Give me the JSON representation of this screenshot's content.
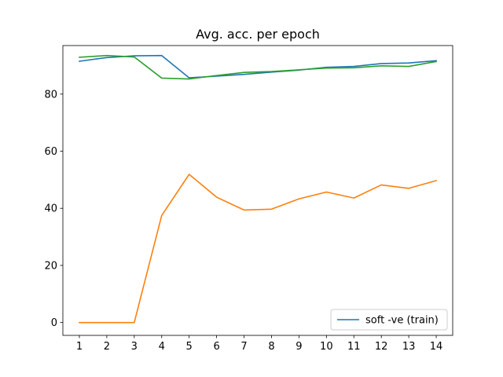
{
  "chart_data": {
    "type": "line",
    "title": "Avg. acc. per epoch",
    "xlabel": "",
    "ylabel": "",
    "x": [
      1,
      2,
      3,
      4,
      5,
      6,
      7,
      8,
      9,
      10,
      11,
      12,
      13,
      14
    ],
    "xlim": [
      0.4,
      14.6
    ],
    "ylim": [
      -4.5,
      97.0
    ],
    "xticks": [
      1,
      2,
      3,
      4,
      5,
      6,
      7,
      8,
      9,
      10,
      11,
      12,
      13,
      14
    ],
    "yticks": [
      0,
      20,
      40,
      60,
      80
    ],
    "grid": false,
    "legend_position": "lower right",
    "series": [
      {
        "name": "soft -ve (train)",
        "color": "#1f77b4",
        "values": [
          91.5,
          92.8,
          93.4,
          93.5,
          85.7,
          86.3,
          86.9,
          87.7,
          88.4,
          89.4,
          89.7,
          90.7,
          90.9,
          91.7
        ]
      },
      {
        "name": "",
        "color": "#ff7f0e",
        "values": [
          0.0,
          0.0,
          0.0,
          37.5,
          51.9,
          43.9,
          39.4,
          39.7,
          43.3,
          45.7,
          43.6,
          48.2,
          47.0,
          49.7
        ]
      },
      {
        "name": "",
        "color": "#2ca02c",
        "values": [
          92.9,
          93.5,
          93.0,
          85.6,
          85.3,
          86.5,
          87.6,
          87.9,
          88.5,
          89.1,
          89.2,
          89.9,
          89.7,
          91.4
        ]
      }
    ]
  }
}
